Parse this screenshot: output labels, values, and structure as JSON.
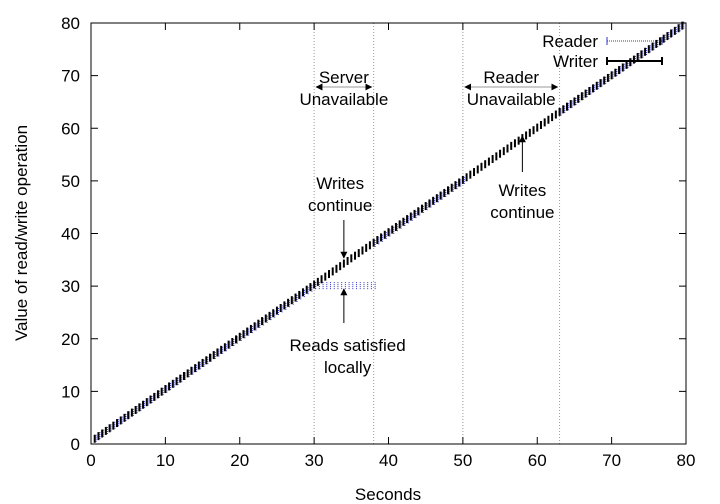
{
  "chart_data": {
    "type": "scatter",
    "title": "",
    "xlabel": "Seconds",
    "ylabel": "Value of read/write operation",
    "xlim": [
      0,
      80
    ],
    "ylim": [
      0,
      80
    ],
    "xticks": [
      0,
      10,
      20,
      30,
      40,
      50,
      60,
      70,
      80
    ],
    "yticks": [
      0,
      10,
      20,
      30,
      40,
      50,
      60,
      70,
      80
    ],
    "legend_position": "top-right",
    "series": [
      {
        "name": "Reader",
        "style": "dotted-errorbar",
        "color": "#3333cc",
        "segments": [
          {
            "x_start": 0.5,
            "x_end": 30,
            "y_start": 1,
            "y_end": 30
          },
          {
            "x_start": 30,
            "x_end": 38,
            "y_start": 30,
            "y_end": 30
          },
          {
            "x_start": 38,
            "x_end": 50,
            "y_start": 38,
            "y_end": 50
          },
          {
            "x_start": 63,
            "x_end": 79.5,
            "y_start": 63,
            "y_end": 79.5
          }
        ]
      },
      {
        "name": "Writer",
        "style": "solid-errorbar",
        "color": "#000000",
        "segments": [
          {
            "x_start": 0.5,
            "x_end": 79.5,
            "y_start": 1,
            "y_end": 79.5
          }
        ]
      }
    ],
    "vlines": [
      30,
      38,
      50,
      63
    ],
    "annotations": [
      {
        "id": "server",
        "lines": [
          "Server",
          "Unavailable"
        ]
      },
      {
        "id": "reader_unavail",
        "lines": [
          "Reader",
          "Unavailable"
        ]
      },
      {
        "id": "writes1",
        "lines": [
          "Writes",
          "continue"
        ]
      },
      {
        "id": "writes2",
        "lines": [
          "Writes",
          "continue"
        ]
      },
      {
        "id": "reads",
        "lines": [
          "Reads satisfied",
          "locally"
        ]
      }
    ]
  }
}
